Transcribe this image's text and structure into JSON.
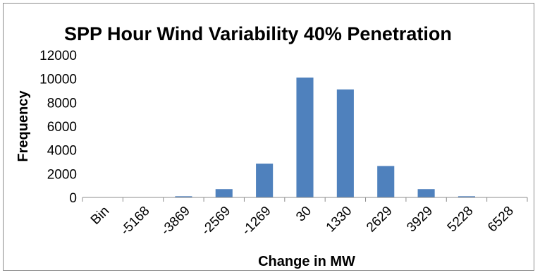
{
  "chart_data": {
    "type": "bar",
    "title": "SPP Hour Wind Variability 40% Penetration",
    "xlabel": "Change in MW",
    "ylabel": "Frequency",
    "categories": [
      "Bin",
      "-5168",
      "-3869",
      "-2569",
      "-1269",
      "30",
      "1330",
      "2629",
      "3929",
      "5228",
      "6528"
    ],
    "series": [
      {
        "values": [
          0,
          0,
          100,
          700,
          2850,
          10100,
          9100,
          2650,
          700,
          100,
          0
        ]
      }
    ],
    "ylim": [
      0,
      12000
    ],
    "yticks": [
      "0",
      "2000",
      "4000",
      "6000",
      "8000",
      "10000",
      "12000"
    ],
    "grid": false,
    "legend": "none",
    "bar_color": "#4f81bd"
  }
}
